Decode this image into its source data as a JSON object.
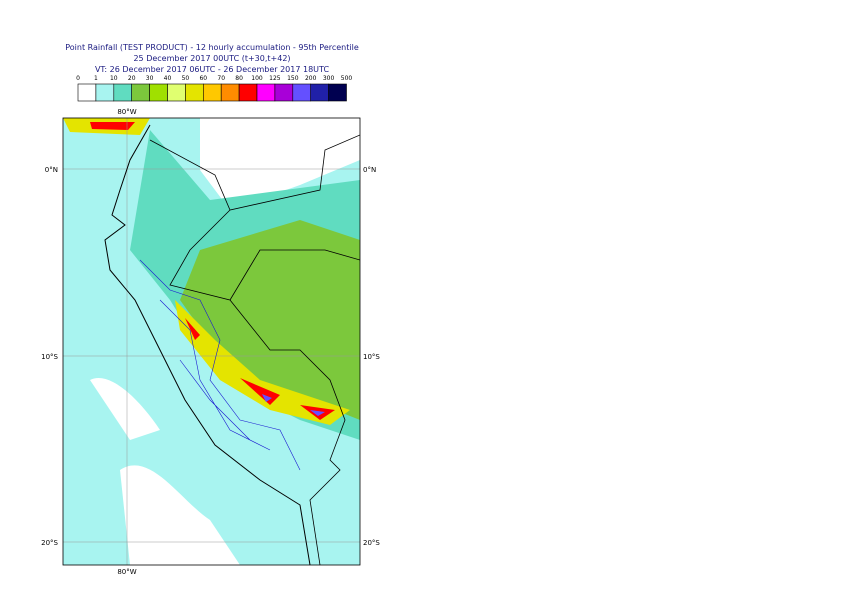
{
  "header": {
    "lines": [
      "Point Rainfall (TEST PRODUCT) - 12 hourly accumulation - 95th Percentile",
      "25 December 2017 00UTC (t+30,t+42)",
      "VT: 26 December 2017 06UTC - 26 December 2017 18UTC"
    ]
  },
  "legend": {
    "ticks": [
      "0",
      "1",
      "10",
      "20",
      "30",
      "40",
      "50",
      "60",
      "70",
      "80",
      "100",
      "125",
      "150",
      "200",
      "300",
      "500"
    ],
    "colors": [
      "#ffffff",
      "#a8f4f0",
      "#60dcc0",
      "#7cc83c",
      "#a0e000",
      "#e0ff70",
      "#e4e400",
      "#ffc800",
      "#ff8c00",
      "#ff0000",
      "#ff00ff",
      "#a800d8",
      "#6450ff",
      "#2020a8",
      "#000050"
    ]
  },
  "map": {
    "lon_top": "80°W",
    "lon_bottom": "80°W",
    "lat_left": [
      "0°N",
      "10°S",
      "20°S"
    ],
    "lat_right": [
      "0°N",
      "10°S",
      "20°S"
    ]
  }
}
